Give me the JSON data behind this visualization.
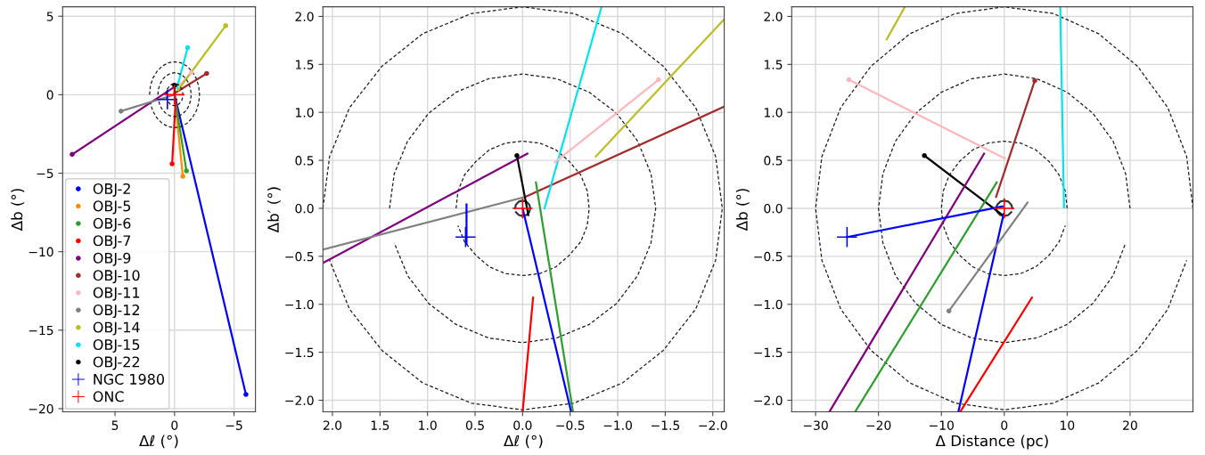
{
  "chart_data": [
    {
      "type": "line",
      "xlabel": "Δℓ (°)",
      "ylabel": "Δb (°)",
      "xlim": [
        9.4,
        -6.8
      ],
      "ylim": [
        -20.2,
        5.6
      ],
      "xticks": [
        {
          "value": 5,
          "label": "5"
        },
        {
          "value": 0,
          "label": "0"
        },
        {
          "value": -5,
          "label": "−5"
        }
      ],
      "yticks": [
        {
          "value": 5,
          "label": "5"
        },
        {
          "value": 0,
          "label": "0"
        },
        {
          "value": -5,
          "label": "−5"
        },
        {
          "value": -10,
          "label": "−10"
        },
        {
          "value": -15,
          "label": "−15"
        },
        {
          "value": -20,
          "label": "−20"
        }
      ],
      "grid": true,
      "legend": "bottom left",
      "series": [
        {
          "name": "OBJ-2",
          "color": "#0000ff",
          "marker": "circle",
          "x": [
            -6.0,
            0
          ],
          "values": [
            -19.1,
            0
          ]
        },
        {
          "name": "OBJ-5",
          "color": "#ff8c00",
          "marker": "circle",
          "x": [
            -0.7,
            0
          ],
          "values": [
            -5.2,
            0
          ]
        },
        {
          "name": "OBJ-6",
          "color": "#2ca02c",
          "marker": "circle",
          "x": [
            -1.0,
            0
          ],
          "values": [
            -4.85,
            0
          ]
        },
        {
          "name": "OBJ-7",
          "color": "#ff0000",
          "marker": "circle",
          "x": [
            0.2,
            -0.1
          ],
          "values": [
            -4.4,
            -0.3
          ]
        },
        {
          "name": "OBJ-9",
          "color": "#800080",
          "marker": "circle",
          "x": [
            8.6,
            -0.2
          ],
          "values": [
            -3.8,
            0.6
          ]
        },
        {
          "name": "OBJ-10",
          "color": "#a52a2a",
          "marker": "circle",
          "x": [
            -2.7,
            0
          ],
          "values": [
            1.35,
            0.1
          ]
        },
        {
          "name": "OBJ-11",
          "color": "#ffb6c1",
          "marker": "circle",
          "x": [
            -1.4,
            -0.4
          ],
          "values": [
            1.4,
            0.6
          ]
        },
        {
          "name": "OBJ-12",
          "color": "#808080",
          "marker": "circle",
          "x": [
            4.5,
            0
          ],
          "values": [
            -1.05,
            0
          ]
        },
        {
          "name": "OBJ-14",
          "color": "#bcbd22",
          "marker": "circle",
          "x": [
            -4.3,
            -0.3
          ],
          "values": [
            4.4,
            0.3
          ]
        },
        {
          "name": "OBJ-15",
          "color": "#00e5ee",
          "marker": "circle",
          "x": [
            -1.1,
            -0.2
          ],
          "values": [
            3.0,
            0.4
          ]
        },
        {
          "name": "OBJ-22",
          "color": "#000000",
          "marker": "circle",
          "x": [
            0.0,
            0.0
          ],
          "values": [
            0.6,
            0.0
          ]
        },
        {
          "name": "NGC 1980",
          "color": "#0000ff",
          "marker": "cross",
          "x": [
            0.6
          ],
          "values": [
            -0.3
          ]
        },
        {
          "name": "ONC",
          "color": "#ff0000",
          "marker": "cross",
          "x": [
            0
          ],
          "values": [
            0
          ]
        },
        {
          "color": "#1a1a1a",
          "line_style": "dashed",
          "x": [
            0.7,
            0.68,
            0.61,
            0.49,
            0.35,
            0.18,
            0,
            -0.18,
            -0.35,
            -0.49,
            -0.61,
            -0.68,
            -0.7,
            -0.68,
            -0.61,
            -0.49,
            -0.35,
            -0.18,
            0,
            0.18,
            0.35,
            0.49,
            0.61,
            0.68
          ],
          "values": [
            0,
            0.18,
            0.35,
            0.49,
            0.61,
            0.68,
            0.7,
            0.68,
            0.61,
            0.49,
            0.35,
            0.18,
            0,
            -0.18,
            -0.35,
            -0.49,
            -0.61,
            -0.68,
            -0.7,
            -0.68,
            -0.61,
            -0.49,
            -0.35,
            -0.18
          ]
        },
        {
          "color": "#1a1a1a",
          "line_style": "dashed",
          "x": [
            1.4,
            1.35,
            1.21,
            0.99,
            0.7,
            0.36,
            0,
            -0.36,
            -0.7,
            -0.99,
            -1.21,
            -1.35,
            -1.4,
            -1.35,
            -1.21,
            -0.99,
            -0.7,
            -0.36,
            0,
            0.36,
            0.7,
            0.99,
            1.21,
            1.35
          ],
          "values": [
            0,
            0.36,
            0.7,
            0.99,
            1.21,
            1.35,
            1.4,
            1.35,
            1.21,
            0.99,
            0.7,
            0.36,
            0,
            -0.36,
            -0.7,
            -0.99,
            -1.21,
            -1.35,
            -1.4,
            -1.35,
            -1.21,
            -0.99,
            -0.7,
            -0.36
          ]
        },
        {
          "color": "#1a1a1a",
          "line_style": "dashed",
          "x": [
            2.1,
            2.03,
            1.82,
            1.48,
            1.05,
            0.54,
            0,
            -0.54,
            -1.05,
            -1.48,
            -1.82,
            -2.03,
            -2.1,
            -2.03,
            -1.82,
            -1.48,
            -1.05,
            -0.54,
            0,
            0.54,
            1.05,
            1.48,
            1.82,
            2.03
          ],
          "values": [
            0,
            0.54,
            1.05,
            1.48,
            1.82,
            2.03,
            2.1,
            2.03,
            1.82,
            1.48,
            1.05,
            0.54,
            0,
            -0.54,
            -1.05,
            -1.48,
            -1.82,
            -2.03,
            -2.1,
            -2.03,
            -1.82,
            -1.48,
            -1.05,
            -0.54
          ]
        }
      ]
    },
    {
      "type": "line",
      "xlabel": "Δℓ (°)",
      "ylabel": "Δb′ (°)",
      "xlim": [
        2.1,
        -2.12
      ],
      "ylim": [
        -2.12,
        2.1
      ],
      "xticks": [
        {
          "value": 2.0,
          "label": "2.0"
        },
        {
          "value": 1.5,
          "label": "1.5"
        },
        {
          "value": 1.0,
          "label": "1.0"
        },
        {
          "value": 0.5,
          "label": "0.5"
        },
        {
          "value": 0.0,
          "label": "0.0"
        },
        {
          "value": -0.5,
          "label": "−0.5"
        },
        {
          "value": -1.0,
          "label": "−1.0"
        },
        {
          "value": -1.5,
          "label": "−1.5"
        },
        {
          "value": -2.0,
          "label": "−2.0"
        }
      ],
      "yticks": [
        {
          "value": -2.0,
          "label": "−2.0"
        },
        {
          "value": -1.5,
          "label": "−1.5"
        },
        {
          "value": -1.0,
          "label": "−1.0"
        },
        {
          "value": -0.5,
          "label": "−0.5"
        },
        {
          "value": 0.0,
          "label": "0.0"
        },
        {
          "value": 0.5,
          "label": "0.5"
        },
        {
          "value": 1.0,
          "label": "1.0"
        },
        {
          "value": 1.5,
          "label": "1.5"
        },
        {
          "value": 2.0,
          "label": "2.0"
        }
      ],
      "grid": true,
      "series": [
        {
          "color": "#1a1a1a",
          "line_style": "dashed",
          "x": [
            0.7,
            0.68,
            0.61,
            0.49,
            0.35,
            0.18,
            0,
            -0.18,
            -0.35,
            -0.49,
            -0.61,
            -0.68,
            -0.7,
            -0.68,
            -0.61,
            -0.49,
            -0.35,
            -0.18,
            0,
            0.18,
            0.35,
            0.49,
            0.61,
            0.68
          ],
          "values": [
            0,
            0.18,
            0.35,
            0.49,
            0.61,
            0.68,
            0.7,
            0.68,
            0.61,
            0.49,
            0.35,
            0.18,
            0,
            -0.18,
            -0.35,
            -0.49,
            -0.61,
            -0.68,
            -0.7,
            -0.68,
            -0.61,
            -0.49,
            -0.35,
            -0.18
          ]
        },
        {
          "color": "#1a1a1a",
          "line_style": "dashed",
          "x": [
            1.4,
            1.35,
            1.21,
            0.99,
            0.7,
            0.36,
            0,
            -0.36,
            -0.7,
            -0.99,
            -1.21,
            -1.35,
            -1.4,
            -1.35,
            -1.21,
            -0.99,
            -0.7,
            -0.36,
            0,
            0.36,
            0.7,
            0.99,
            1.21,
            1.35
          ],
          "values": [
            0,
            0.36,
            0.7,
            0.99,
            1.21,
            1.35,
            1.4,
            1.35,
            1.21,
            0.99,
            0.7,
            0.36,
            0,
            -0.36,
            -0.7,
            -0.99,
            -1.21,
            -1.35,
            -1.4,
            -1.35,
            -1.21,
            -0.99,
            -0.7,
            -0.36
          ]
        },
        {
          "color": "#1a1a1a",
          "line_style": "dashed",
          "x": [
            2.1,
            2.03,
            1.82,
            1.48,
            1.05,
            0.54,
            0,
            -0.54,
            -1.05,
            -1.48,
            -1.82,
            -2.03,
            -2.1,
            -2.03,
            -1.82,
            -1.48,
            -1.05,
            -0.54,
            0,
            0.54,
            1.05,
            1.48,
            1.82,
            2.03
          ],
          "values": [
            0,
            0.54,
            1.05,
            1.48,
            1.82,
            2.03,
            2.1,
            2.03,
            1.82,
            1.48,
            1.05,
            0.54,
            0,
            -0.54,
            -1.05,
            -1.48,
            -1.82,
            -2.03,
            -2.1,
            -2.03,
            -1.82,
            -1.48,
            -1.05,
            -0.54
          ]
        },
        {
          "color": "#333333",
          "x": [
            0.08,
            0.07,
            0.04,
            0,
            -0.04,
            -0.07,
            -0.08,
            -0.07,
            -0.04,
            0,
            0.04,
            0.07
          ],
          "values": [
            0,
            0.04,
            0.07,
            0.08,
            0.07,
            0.04,
            0,
            -0.04,
            -0.07,
            -0.08,
            -0.07,
            -0.04
          ]
        },
        {
          "color": "#800080",
          "x": [
            2.1,
            -0.05
          ],
          "values": [
            -0.57,
            0.57
          ]
        },
        {
          "color": "#808080",
          "x": [
            2.1,
            -0.03
          ],
          "values": [
            -0.43,
            0.12
          ]
        },
        {
          "color": "#a52a2a",
          "x": [
            -0.03,
            -2.12
          ],
          "values": [
            0.12,
            1.06
          ]
        },
        {
          "color": "#00e5ee",
          "x": [
            -0.23,
            -0.83
          ],
          "values": [
            0.0,
            2.1
          ]
        },
        {
          "color": "#ffb6c1",
          "marker": "circle",
          "x": [
            -1.43,
            -0.34
          ],
          "values": [
            1.34,
            0.48
          ]
        },
        {
          "color": "#bcbd22",
          "x": [
            -0.77,
            -2.12
          ],
          "values": [
            0.54,
            1.97
          ]
        },
        {
          "color": "#2ca02c",
          "x": [
            -0.14,
            -0.53
          ],
          "values": [
            0.27,
            -2.12
          ]
        },
        {
          "color": "#0000ff",
          "x": [
            0.0,
            -0.51
          ],
          "values": [
            0.0,
            -2.12
          ]
        },
        {
          "color": "#ff0000",
          "x": [
            -0.11,
            0.0
          ],
          "values": [
            -0.93,
            -2.12
          ]
        },
        {
          "color": "#000000",
          "marker": "circle",
          "x": [
            0.06,
            -0.06
          ],
          "values": [
            0.55,
            -0.07
          ]
        },
        {
          "color": "#0000ff",
          "x": [
            0.59,
            0.59
          ],
          "values": [
            -0.37,
            0.04
          ]
        },
        {
          "color": "#0000ff",
          "marker": "cross",
          "x": [
            0.6
          ],
          "values": [
            -0.3
          ]
        },
        {
          "color": "#ff0000",
          "marker": "cross",
          "x": [
            0
          ],
          "values": [
            0
          ]
        }
      ]
    },
    {
      "type": "line",
      "xlabel": "Δ Distance (pc)",
      "ylabel": "Δb (°)",
      "xlim": [
        -33.8,
        30
      ],
      "ylim": [
        -2.12,
        2.1
      ],
      "xticks": [
        {
          "value": -30,
          "label": "−30"
        },
        {
          "value": -20,
          "label": "−20"
        },
        {
          "value": -10,
          "label": "−10"
        },
        {
          "value": 0,
          "label": "0"
        },
        {
          "value": 10,
          "label": "10"
        },
        {
          "value": 20,
          "label": "20"
        }
      ],
      "yticks": [
        {
          "value": -2.0,
          "label": "−2.0"
        },
        {
          "value": -1.5,
          "label": "−1.5"
        },
        {
          "value": -1.0,
          "label": "−1.0"
        },
        {
          "value": -0.5,
          "label": "−0.5"
        },
        {
          "value": 0.0,
          "label": "0.0"
        },
        {
          "value": 0.5,
          "label": "0.5"
        },
        {
          "value": 1.0,
          "label": "1.0"
        },
        {
          "value": 1.5,
          "label": "1.5"
        },
        {
          "value": 2.0,
          "label": "2.0"
        }
      ],
      "grid": true,
      "series": [
        {
          "color": "#1a1a1a",
          "line_style": "dashed",
          "x": [
            10,
            9.7,
            8.7,
            7.1,
            5,
            2.6,
            0,
            -2.6,
            -5,
            -7.1,
            -8.7,
            -9.7,
            -10,
            -9.7,
            -8.7,
            -7.1,
            -5,
            -2.6,
            0,
            2.6,
            5,
            7.1,
            8.7,
            9.7
          ],
          "values": [
            0,
            0.18,
            0.35,
            0.49,
            0.61,
            0.68,
            0.7,
            0.68,
            0.61,
            0.49,
            0.35,
            0.18,
            0,
            -0.18,
            -0.35,
            -0.49,
            -0.61,
            -0.68,
            -0.7,
            -0.68,
            -0.61,
            -0.49,
            -0.35,
            -0.18
          ]
        },
        {
          "color": "#1a1a1a",
          "line_style": "dashed",
          "x": [
            20,
            19.3,
            17.3,
            14.1,
            10,
            5.2,
            0,
            -5.2,
            -10,
            -14.1,
            -17.3,
            -19.3,
            -20,
            -19.3,
            -17.3,
            -14.1,
            -10,
            -5.2,
            0,
            5.2,
            10,
            14.1,
            17.3,
            19.3
          ],
          "values": [
            0,
            0.36,
            0.7,
            0.99,
            1.21,
            1.35,
            1.4,
            1.35,
            1.21,
            0.99,
            0.7,
            0.36,
            0,
            -0.36,
            -0.7,
            -0.99,
            -1.21,
            -1.35,
            -1.4,
            -1.35,
            -1.21,
            -0.99,
            -0.7,
            -0.36
          ]
        },
        {
          "color": "#1a1a1a",
          "line_style": "dashed",
          "x": [
            30,
            29,
            26,
            21.2,
            15,
            7.8,
            0,
            -7.8,
            -15,
            -21.2,
            -26,
            -29,
            -30,
            -29,
            -26,
            -21.2,
            -15,
            -7.8,
            0,
            7.8,
            15,
            21.2,
            26,
            29
          ],
          "values": [
            0,
            0.54,
            1.05,
            1.48,
            1.82,
            2.03,
            2.1,
            2.03,
            1.82,
            1.48,
            1.05,
            0.54,
            0,
            -0.54,
            -1.05,
            -1.48,
            -1.82,
            -2.03,
            -2.1,
            -2.03,
            -1.82,
            -1.48,
            -1.05,
            -0.54
          ]
        },
        {
          "color": "#333333",
          "x": [
            1.3,
            1.1,
            0.65,
            0,
            -0.65,
            -1.1,
            -1.3,
            -1.1,
            -0.65,
            0,
            0.65,
            1.1
          ],
          "values": [
            0,
            0.04,
            0.07,
            0.08,
            0.07,
            0.04,
            0,
            -0.04,
            -0.07,
            -0.08,
            -0.07,
            -0.04
          ]
        },
        {
          "color": "#bcbd22",
          "x": [
            -18.7,
            -15.8
          ],
          "values": [
            1.76,
            2.1
          ]
        },
        {
          "color": "#ffb6c1",
          "marker": "circle",
          "x": [
            -24.7,
            0.1
          ],
          "values": [
            1.34,
            0.52
          ]
        },
        {
          "color": "#a52a2a",
          "marker": "circle",
          "x": [
            4.85,
            -1.3
          ],
          "values": [
            1.33,
            0.12
          ]
        },
        {
          "color": "#00e5ee",
          "x": [
            8.9,
            9.5
          ],
          "values": [
            2.1,
            0.01
          ]
        },
        {
          "color": "#000000",
          "marker": "circle",
          "x": [
            -12.7,
            -0.3
          ],
          "values": [
            0.55,
            -0.07
          ]
        },
        {
          "color": "#800080",
          "x": [
            -3.2,
            -27.8
          ],
          "values": [
            0.57,
            -2.12
          ]
        },
        {
          "color": "#2ca02c",
          "x": [
            -1.2,
            -23.7
          ],
          "values": [
            0.27,
            -2.12
          ]
        },
        {
          "color": "#0000ff",
          "x": [
            -0.1,
            -7.3
          ],
          "values": [
            -0.06,
            -2.12
          ]
        },
        {
          "color": "#ff0000",
          "x": [
            4.4,
            -7.0
          ],
          "values": [
            -0.93,
            -2.12
          ]
        },
        {
          "color": "#808080",
          "marker": "circle",
          "x": [
            -8.8,
            3.7
          ],
          "values": [
            -1.07,
            0.06
          ]
        },
        {
          "color": "#0000ff",
          "marker": "cross",
          "x": [
            -25.0,
            -0.3
          ],
          "values": [
            -0.3,
            0.02
          ]
        },
        {
          "color": "#ff0000",
          "marker": "cross",
          "x": [
            0
          ],
          "values": [
            0
          ]
        }
      ]
    }
  ]
}
